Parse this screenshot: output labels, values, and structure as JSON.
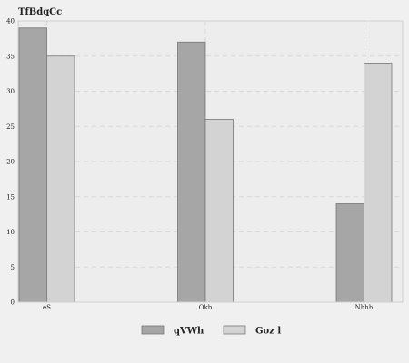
{
  "chart_data": {
    "type": "bar",
    "title": "TfBdqCc",
    "xlabel": "",
    "ylabel": "",
    "categories": [
      "eS",
      "Okb",
      "Nhhh"
    ],
    "series": [
      {
        "name": "qVWh",
        "values": [
          39,
          37,
          14
        ],
        "color": "#a6a6a6"
      },
      {
        "name": "Goz l",
        "values": [
          35,
          26,
          34
        ],
        "color": "#d3d3d3"
      }
    ],
    "ylim": [
      0,
      40
    ],
    "yticks": [
      0,
      5,
      10,
      15,
      20,
      25,
      30,
      35,
      40
    ],
    "grid": true,
    "legend": "bottom-center"
  }
}
